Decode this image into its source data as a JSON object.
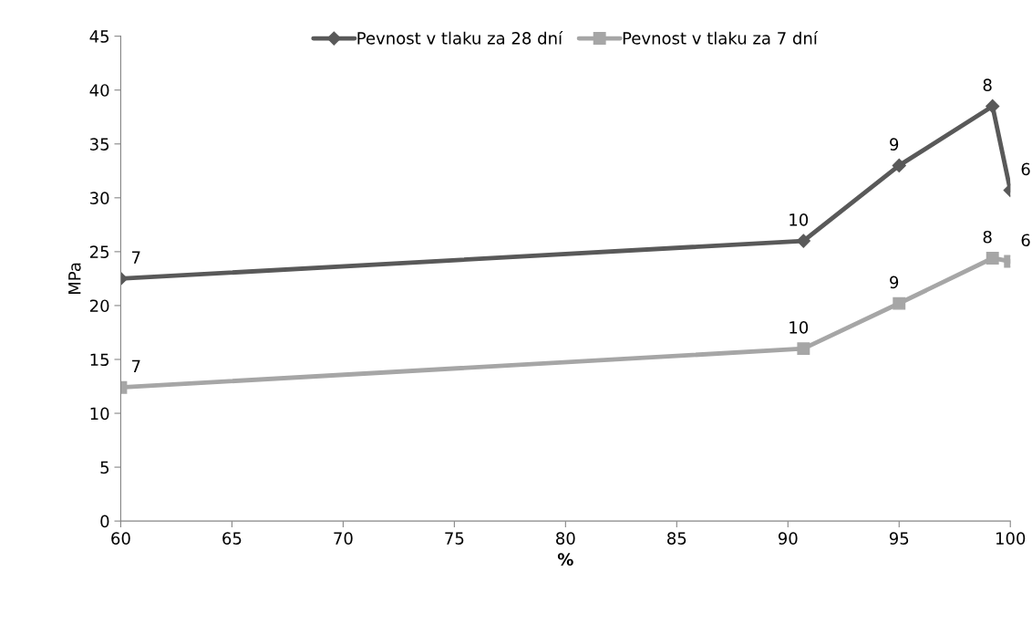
{
  "chart_data": {
    "type": "line",
    "xlabel": "%",
    "ylabel": "MPa",
    "series": [
      {
        "name": "Pevnost v tlaku za 28 dní",
        "color": "#595959",
        "marker": "diamond",
        "x": [
          60,
          90.7,
          95,
          99.2,
          100
        ],
        "values": [
          22.5,
          26.0,
          33.0,
          38.5,
          30.7
        ]
      },
      {
        "name": "Pevnost v tlaku za 7 dní",
        "color": "#a6a6a6",
        "marker": "square",
        "x": [
          60,
          90.7,
          95,
          99.2,
          100
        ],
        "values": [
          12.4,
          16.0,
          20.2,
          24.4,
          24.1
        ]
      }
    ],
    "annotations": [
      {
        "text": "7",
        "x": 60,
        "y": 22.5
      },
      {
        "text": "10",
        "x": 90.7,
        "y": 26.0
      },
      {
        "text": "9",
        "x": 95,
        "y": 33.0
      },
      {
        "text": "8",
        "x": 99.2,
        "y": 38.5
      },
      {
        "text": "6",
        "x": 100,
        "y": 30.7
      },
      {
        "text": "7",
        "x": 60,
        "y": 12.4
      },
      {
        "text": "10",
        "x": 90.7,
        "y": 16.0
      },
      {
        "text": "9",
        "x": 95,
        "y": 20.2
      },
      {
        "text": "8",
        "x": 99.2,
        "y": 24.4
      },
      {
        "text": "6",
        "x": 100,
        "y": 24.1
      }
    ],
    "xlim": [
      60,
      100
    ],
    "xticks": [
      60,
      65,
      70,
      75,
      80,
      85,
      90,
      95,
      100
    ],
    "ylim": [
      0,
      45
    ],
    "yticks": [
      0,
      5,
      10,
      15,
      20,
      25,
      30,
      35,
      40,
      45
    ],
    "grid": false,
    "legend": "top",
    "line_style": "solid"
  }
}
